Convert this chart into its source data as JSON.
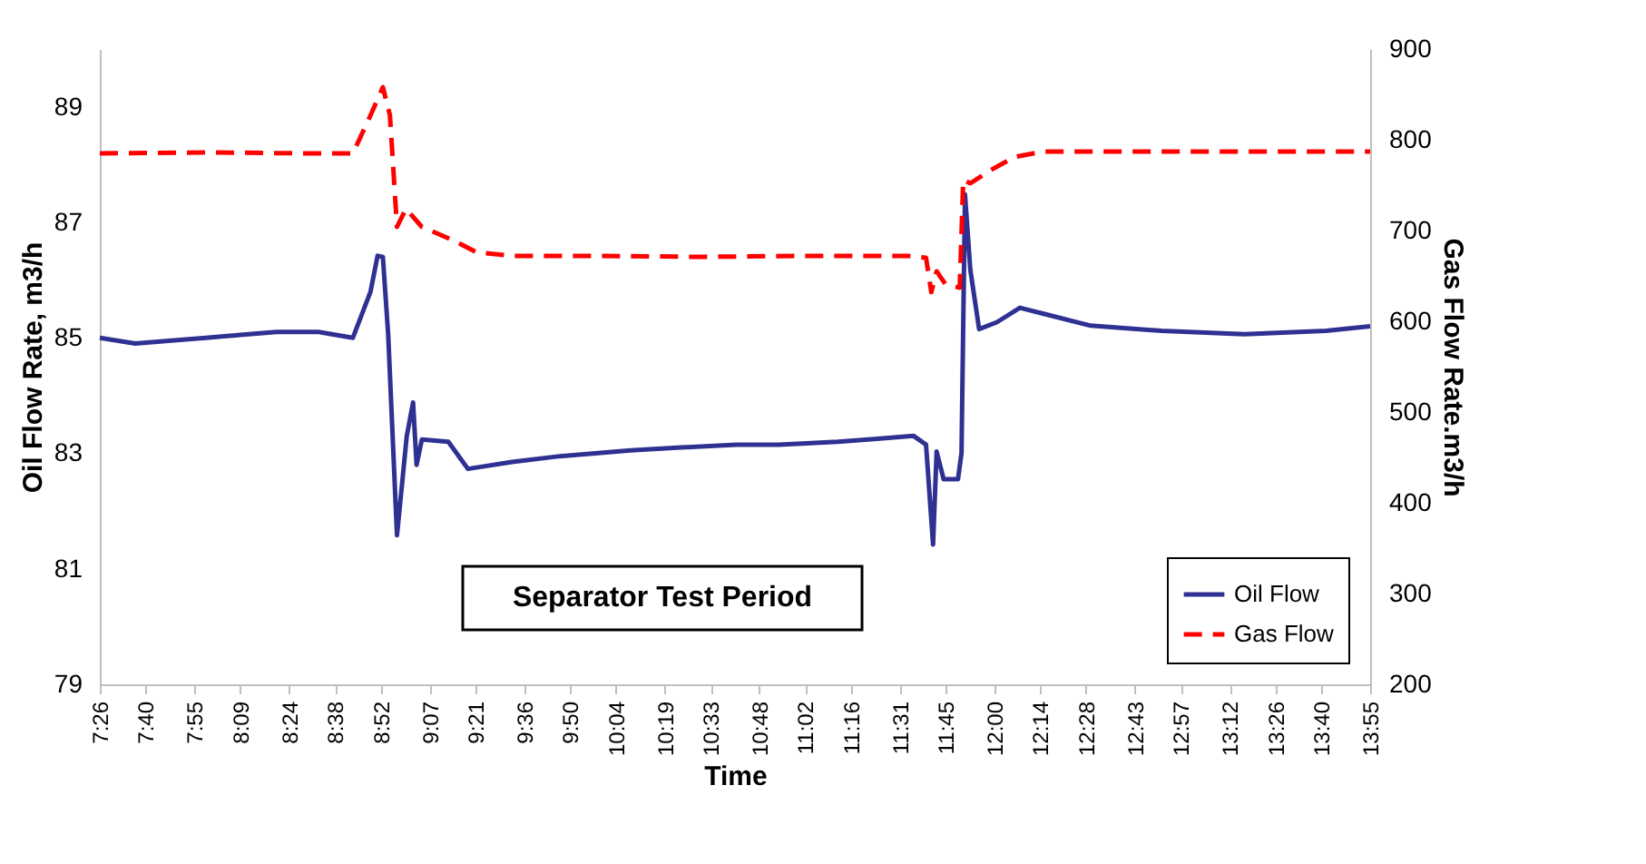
{
  "chart_data": {
    "type": "line",
    "xlabel": "Time",
    "ylabel": "Oil Flow Rate, m3/h",
    "y2label": "Gas Flow Rate.m3/h",
    "xlim": [
      7.4333,
      13.9167
    ],
    "xticks": [
      {
        "value": 7.4333,
        "label": "7:26"
      },
      {
        "value": 7.6667,
        "label": "7:40"
      },
      {
        "value": 7.9167,
        "label": "7:55"
      },
      {
        "value": 8.15,
        "label": "8:09"
      },
      {
        "value": 8.4,
        "label": "8:24"
      },
      {
        "value": 8.6333,
        "label": "8:38"
      },
      {
        "value": 8.8667,
        "label": "8:52"
      },
      {
        "value": 9.1167,
        "label": "9:07"
      },
      {
        "value": 9.35,
        "label": "9:21"
      },
      {
        "value": 9.6,
        "label": "9:36"
      },
      {
        "value": 9.8333,
        "label": "9:50"
      },
      {
        "value": 10.0667,
        "label": "10:04"
      },
      {
        "value": 10.3167,
        "label": "10:19"
      },
      {
        "value": 10.55,
        "label": "10:33"
      },
      {
        "value": 10.8,
        "label": "10:48"
      },
      {
        "value": 11.0333,
        "label": "11:02"
      },
      {
        "value": 11.2667,
        "label": "11:16"
      },
      {
        "value": 11.5167,
        "label": "11:31"
      },
      {
        "value": 11.75,
        "label": "11:45"
      },
      {
        "value": 12.0,
        "label": "12:00"
      },
      {
        "value": 12.2333,
        "label": "12:14"
      },
      {
        "value": 12.4667,
        "label": "12:28"
      },
      {
        "value": 12.7167,
        "label": "12:43"
      },
      {
        "value": 12.95,
        "label": "12:57"
      },
      {
        "value": 13.2,
        "label": "13:12"
      },
      {
        "value": 13.4333,
        "label": "13:26"
      },
      {
        "value": 13.6667,
        "label": "13:40"
      },
      {
        "value": 13.9167,
        "label": "13:55"
      }
    ],
    "ylim": [
      79,
      90
    ],
    "yticks": [
      79,
      81,
      83,
      85,
      87,
      89
    ],
    "y2lim": [
      200,
      900
    ],
    "y2ticks": [
      200,
      300,
      400,
      500,
      600,
      700,
      800,
      900
    ],
    "grid": false,
    "legend": "bottom right",
    "marker": "none",
    "annotations": [
      "Separator Test Period"
    ],
    "series": [
      {
        "name": "Oil Flow",
        "color": "#2e3192",
        "line_style": "solid",
        "x": [
          7.4333,
          7.614,
          7.8,
          7.975,
          8.15,
          8.336,
          8.55,
          8.725,
          8.815,
          8.851,
          8.878,
          8.905,
          8.95,
          9.0,
          9.032,
          9.05,
          9.077,
          9.212,
          9.312,
          9.537,
          9.781,
          10.142,
          10.4,
          10.684,
          10.9,
          11.2,
          11.4,
          11.587,
          11.65,
          11.686,
          11.704,
          11.74,
          11.813,
          11.831,
          11.849,
          11.876,
          11.921,
          12.012,
          12.129,
          12.246,
          12.49,
          12.851,
          13.276,
          13.691,
          13.9167
        ],
        "values": [
          85.0,
          84.9,
          84.95,
          85.0,
          85.05,
          85.1,
          85.1,
          85.0,
          85.8,
          86.42,
          86.4,
          85.06,
          81.58,
          83.3,
          83.88,
          82.8,
          83.24,
          83.2,
          82.73,
          82.85,
          82.95,
          83.05,
          83.1,
          83.15,
          83.15,
          83.2,
          83.25,
          83.3,
          83.15,
          81.42,
          83.03,
          82.55,
          82.55,
          83.0,
          87.48,
          86.18,
          85.15,
          85.27,
          85.52,
          85.42,
          85.21,
          85.12,
          85.06,
          85.12,
          85.2
        ]
      },
      {
        "name": "Gas Flow",
        "axis": "y2",
        "color": "#ff0000",
        "line_style": "dashed",
        "x": [
          7.4333,
          8.0,
          8.5,
          8.725,
          8.815,
          8.878,
          8.914,
          8.95,
          8.996,
          9.077,
          9.239,
          9.357,
          9.537,
          10.0,
          10.5,
          11.0,
          11.56,
          11.65,
          11.677,
          11.704,
          11.749,
          11.822,
          11.84,
          11.876,
          11.975,
          12.102,
          12.246,
          12.8,
          13.3,
          13.9167
        ],
        "values": [
          785,
          786,
          785,
          785,
          827,
          858,
          827,
          704,
          724,
          704,
          689,
          676,
          672,
          672,
          671,
          672,
          672,
          670,
          632,
          655,
          641,
          637,
          756,
          752,
          766,
          781,
          787,
          787,
          787,
          787
        ]
      }
    ]
  }
}
